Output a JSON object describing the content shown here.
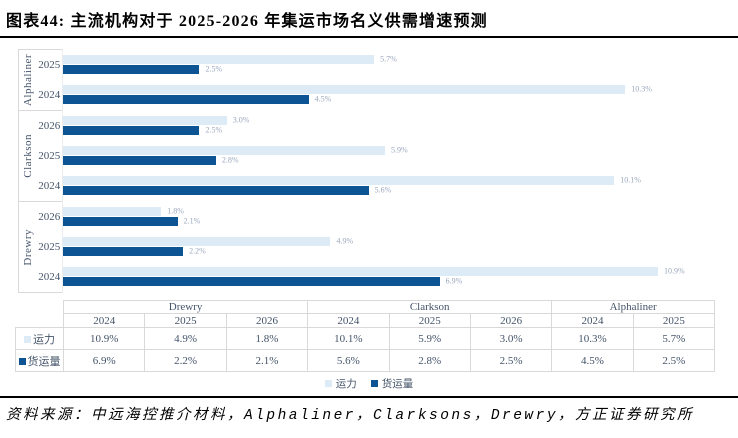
{
  "title": "图表44: 主流机构对于 2025-2026 年集运市场名义供需增速预测",
  "source": "资料来源：中远海控推介材料，Alphaliner，Clarksons，Drewry，方正证券研究所",
  "colors": {
    "capacity_bar": "#DDEBF7",
    "volume_bar": "#0D5494",
    "bar_value_label": "#9AA7BD",
    "axis_text": "#44546A",
    "grid_border": "#D9D9D9"
  },
  "legend": [
    {
      "key": "capacity",
      "label": "运力"
    },
    {
      "key": "volume",
      "label": "货运量"
    }
  ],
  "chart_data": {
    "type": "bar",
    "orientation": "horizontal",
    "unit": "%",
    "xlim": [
      0,
      12
    ],
    "grid": false,
    "series_names": [
      "运力",
      "货运量"
    ],
    "groups": [
      {
        "name": "Alphaliner",
        "rows": [
          {
            "year": "2025",
            "capacity": 5.7,
            "volume": 2.5
          },
          {
            "year": "2024",
            "capacity": 10.3,
            "volume": 4.5
          }
        ]
      },
      {
        "name": "Clarkson",
        "rows": [
          {
            "year": "2026",
            "capacity": 3.0,
            "volume": 2.5
          },
          {
            "year": "2025",
            "capacity": 5.9,
            "volume": 2.8
          },
          {
            "year": "2024",
            "capacity": 10.1,
            "volume": 5.6
          }
        ]
      },
      {
        "name": "Drewry",
        "rows": [
          {
            "year": "2026",
            "capacity": 1.8,
            "volume": 2.1
          },
          {
            "year": "2025",
            "capacity": 4.9,
            "volume": 2.2
          },
          {
            "year": "2024",
            "capacity": 10.9,
            "volume": 6.9
          }
        ]
      }
    ]
  },
  "table": {
    "groups": [
      {
        "name": "Drewry",
        "years": [
          "2024",
          "2025",
          "2026"
        ]
      },
      {
        "name": "Clarkson",
        "years": [
          "2024",
          "2025",
          "2026"
        ]
      },
      {
        "name": "Alphaliner",
        "years": [
          "2024",
          "2025"
        ]
      }
    ],
    "rows": [
      {
        "key": "capacity",
        "label": "运力",
        "values": [
          "10.9%",
          "4.9%",
          "1.8%",
          "10.1%",
          "5.9%",
          "3.0%",
          "10.3%",
          "5.7%"
        ]
      },
      {
        "key": "volume",
        "label": "货运量",
        "values": [
          "6.9%",
          "2.2%",
          "2.1%",
          "5.6%",
          "2.8%",
          "2.5%",
          "4.5%",
          "2.5%"
        ]
      }
    ]
  }
}
